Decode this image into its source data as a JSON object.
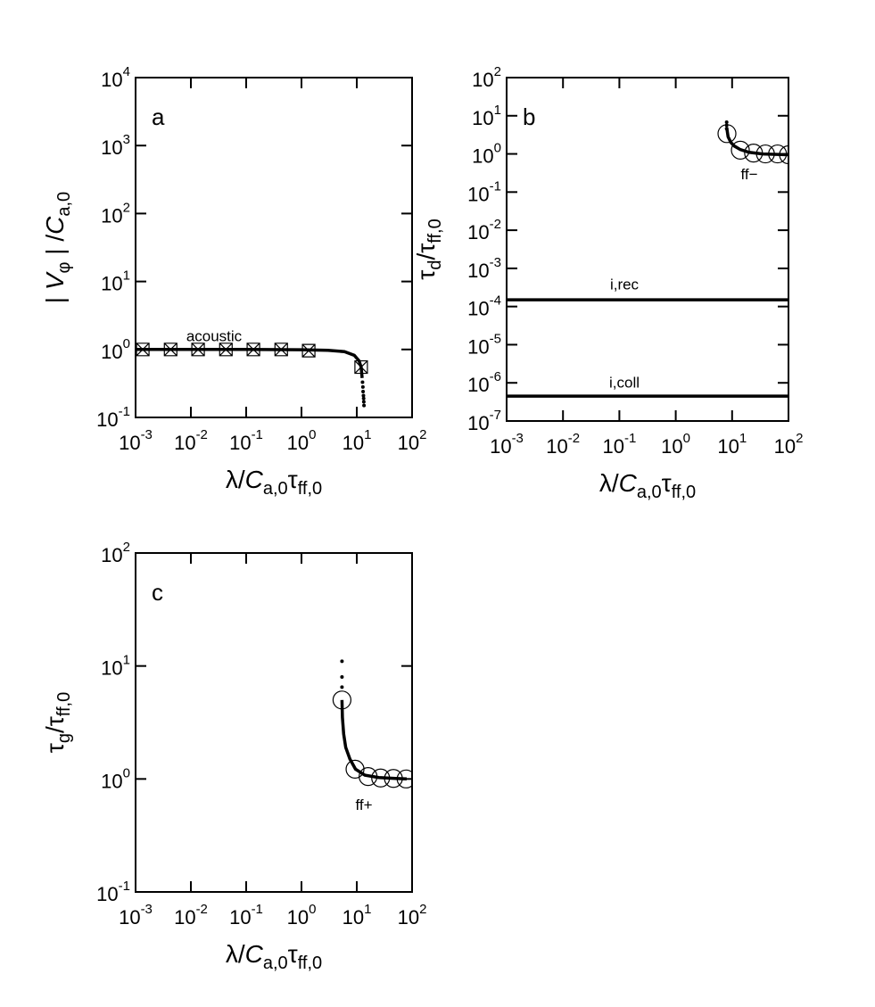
{
  "chart_data": [
    {
      "type": "line",
      "panel_label": "a",
      "xlabel": "λ/C_a,0τ_ff,0",
      "ylabel": "| V_φ | /C_a,0",
      "log_x": true,
      "log_y": true,
      "xlim": [
        0.001,
        100
      ],
      "ylim": [
        0.1,
        10000
      ],
      "xticks": [
        {
          "value": 0.001,
          "label": "10^-3"
        },
        {
          "value": 0.01,
          "label": "10^-2"
        },
        {
          "value": 0.1,
          "label": "10^-1"
        },
        {
          "value": 1,
          "label": "10^0"
        },
        {
          "value": 10,
          "label": "10^1"
        },
        {
          "value": 100,
          "label": "10^2"
        }
      ],
      "yticks": [
        {
          "value": 0.1,
          "label": "10^-1"
        },
        {
          "value": 1,
          "label": "10^0"
        },
        {
          "value": 10,
          "label": "10^1"
        },
        {
          "value": 100,
          "label": "10^2"
        },
        {
          "value": 1000,
          "label": "10^3"
        },
        {
          "value": 10000,
          "label": "10^4"
        }
      ],
      "series": [
        {
          "style": "line",
          "color": "#000000",
          "label": "acoustic",
          "x": [
            0.001,
            0.1,
            1,
            3,
            6,
            9,
            11,
            12,
            12.5
          ],
          "values": [
            1,
            1,
            0.99,
            0.97,
            0.93,
            0.82,
            0.68,
            0.55,
            0.38
          ]
        },
        {
          "style": "dot",
          "color": "#000000",
          "x": [
            12.7,
            12.9,
            13,
            13.2,
            13.3,
            13.4,
            13.5
          ],
          "values": [
            0.33,
            0.28,
            0.24,
            0.21,
            0.19,
            0.17,
            0.15
          ]
        },
        {
          "style": "boxx",
          "color": "#000000",
          "x": [
            0.00135,
            0.0043,
            0.0135,
            0.043,
            0.135,
            0.43,
            1.35,
            12
          ],
          "values": [
            1,
            1,
            1,
            1,
            1,
            1,
            0.96,
            0.55
          ]
        }
      ]
    },
    {
      "type": "line",
      "panel_label": "b",
      "xlabel": "λ/C_a,0τ_ff,0",
      "ylabel": "τ_d/τ_ff,0",
      "log_x": true,
      "log_y": true,
      "xlim": [
        0.001,
        100
      ],
      "ylim": [
        1e-07,
        100
      ],
      "xticks": [
        {
          "value": 0.001,
          "label": "10^-3"
        },
        {
          "value": 0.01,
          "label": "10^-2"
        },
        {
          "value": 0.1,
          "label": "10^-1"
        },
        {
          "value": 1,
          "label": "10^0"
        },
        {
          "value": 10,
          "label": "10^1"
        },
        {
          "value": 100,
          "label": "10^2"
        }
      ],
      "yticks": [
        {
          "value": 1e-07,
          "label": "10^-7"
        },
        {
          "value": 1e-06,
          "label": "10^-6"
        },
        {
          "value": 1e-05,
          "label": "10^-5"
        },
        {
          "value": 0.0001,
          "label": "10^-4"
        },
        {
          "value": 0.001,
          "label": "10^-3"
        },
        {
          "value": 0.01,
          "label": "10^-2"
        },
        {
          "value": 0.1,
          "label": "10^-1"
        },
        {
          "value": 1,
          "label": "10^0"
        },
        {
          "value": 10,
          "label": "10^1"
        },
        {
          "value": 100,
          "label": "10^2"
        }
      ],
      "series": [
        {
          "style": "line",
          "color": "#000000",
          "label": "i,rec",
          "x": [
            0.001,
            100
          ],
          "values": [
            0.00015,
            0.00015
          ]
        },
        {
          "style": "line",
          "color": "#000000",
          "label": "i,coll",
          "x": [
            0.001,
            100
          ],
          "values": [
            4.5e-07,
            4.5e-07
          ]
        },
        {
          "style": "line",
          "color": "#000000",
          "label": "ff−",
          "x": [
            8,
            8.5,
            9.5,
            11,
            14,
            20,
            35,
            100
          ],
          "values": [
            5,
            2.8,
            2,
            1.6,
            1.3,
            1.1,
            1,
            0.95
          ]
        },
        {
          "style": "dot",
          "color": "#000000",
          "x": [
            8,
            8,
            8
          ],
          "values": [
            6.8,
            5.6,
            4.6
          ]
        },
        {
          "style": "circle",
          "color": "#000000",
          "x": [
            8.1,
            14,
            24,
            39,
            64,
            100
          ],
          "values": [
            3.4,
            1.25,
            1.05,
            1,
            1,
            0.95
          ]
        }
      ]
    },
    {
      "type": "line",
      "panel_label": "c",
      "xlabel": "λ/C_a,0τ_ff,0",
      "ylabel": "τ_g/τ_ff,0",
      "log_x": true,
      "log_y": true,
      "xlim": [
        0.001,
        100
      ],
      "ylim": [
        0.1,
        100
      ],
      "xticks": [
        {
          "value": 0.001,
          "label": "10^-3"
        },
        {
          "value": 0.01,
          "label": "10^-2"
        },
        {
          "value": 0.1,
          "label": "10^-1"
        },
        {
          "value": 1,
          "label": "10^0"
        },
        {
          "value": 10,
          "label": "10^1"
        },
        {
          "value": 100,
          "label": "10^2"
        }
      ],
      "yticks": [
        {
          "value": 0.1,
          "label": "10^-1"
        },
        {
          "value": 1,
          "label": "10^0"
        },
        {
          "value": 10,
          "label": "10^1"
        },
        {
          "value": 100,
          "label": "10^2"
        }
      ],
      "series": [
        {
          "style": "line",
          "color": "#000000",
          "label": "ff+",
          "x": [
            5.4,
            5.5,
            5.8,
            6.3,
            7.5,
            9.5,
            14,
            25,
            50,
            80
          ],
          "values": [
            5,
            3.5,
            2.5,
            1.9,
            1.5,
            1.22,
            1.08,
            1.03,
            1.01,
            1
          ]
        },
        {
          "style": "dot",
          "color": "#000000",
          "x": [
            5.4,
            5.4,
            5.4
          ],
          "values": [
            11,
            8,
            6.5
          ]
        },
        {
          "style": "circle",
          "color": "#000000",
          "x": [
            5.4,
            9.3,
            16,
            27,
            46,
            78
          ],
          "values": [
            5,
            1.22,
            1.05,
            1.02,
            1.01,
            1
          ]
        }
      ]
    }
  ]
}
